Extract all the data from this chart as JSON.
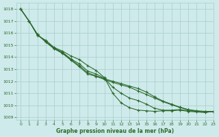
{
  "background_color": "#ceeaea",
  "grid_color": "#a8cccc",
  "line_color": "#2d6a2d",
  "marker_color": "#2d6a2d",
  "xlabel": "Graphe pression niveau de la mer (hPa)",
  "xlabel_color": "#2d6a2d",
  "tick_color": "#2d6a2d",
  "ylim": [
    1008.8,
    1018.5
  ],
  "xlim": [
    -0.5,
    23
  ],
  "yticks": [
    1009,
    1010,
    1011,
    1012,
    1013,
    1014,
    1015,
    1016,
    1017,
    1018
  ],
  "xticks": [
    0,
    1,
    2,
    3,
    4,
    5,
    6,
    7,
    8,
    9,
    10,
    11,
    12,
    13,
    14,
    15,
    16,
    17,
    18,
    19,
    20,
    21,
    22,
    23
  ],
  "line1": [
    1018.0,
    1017.0,
    1015.8,
    1015.4,
    1014.8,
    1014.5,
    1014.1,
    1013.8,
    1013.3,
    1012.9,
    1012.3,
    1011.0,
    1010.2,
    1009.8,
    1009.6,
    1009.55,
    1009.5,
    1009.55,
    1009.55,
    1009.6,
    1009.5,
    1009.45,
    1009.4,
    1009.5
  ],
  "line2": [
    1018.0,
    1017.0,
    1015.85,
    1015.3,
    1014.75,
    1014.4,
    1013.85,
    1013.45,
    1012.85,
    1012.6,
    1012.25,
    1011.5,
    1011.0,
    1010.6,
    1010.4,
    1010.1,
    1009.75,
    1009.6,
    1009.6,
    1009.65,
    1009.55,
    1009.5,
    1009.45,
    1009.5
  ],
  "line3": [
    1018.0,
    1017.0,
    1015.9,
    1015.25,
    1014.7,
    1014.35,
    1013.8,
    1013.3,
    1012.7,
    1012.45,
    1012.2,
    1012.0,
    1011.8,
    1011.6,
    1011.4,
    1011.1,
    1010.7,
    1010.35,
    1010.1,
    1009.85,
    1009.65,
    1009.55,
    1009.5,
    1009.5
  ],
  "line4": [
    1018.0,
    1017.0,
    1015.9,
    1015.25,
    1014.7,
    1014.3,
    1013.75,
    1013.2,
    1012.6,
    1012.4,
    1012.15,
    1011.9,
    1011.7,
    1011.5,
    1011.2,
    1010.9,
    1010.6,
    1010.3,
    1010.05,
    1009.82,
    1009.62,
    1009.52,
    1009.46,
    1009.5
  ]
}
